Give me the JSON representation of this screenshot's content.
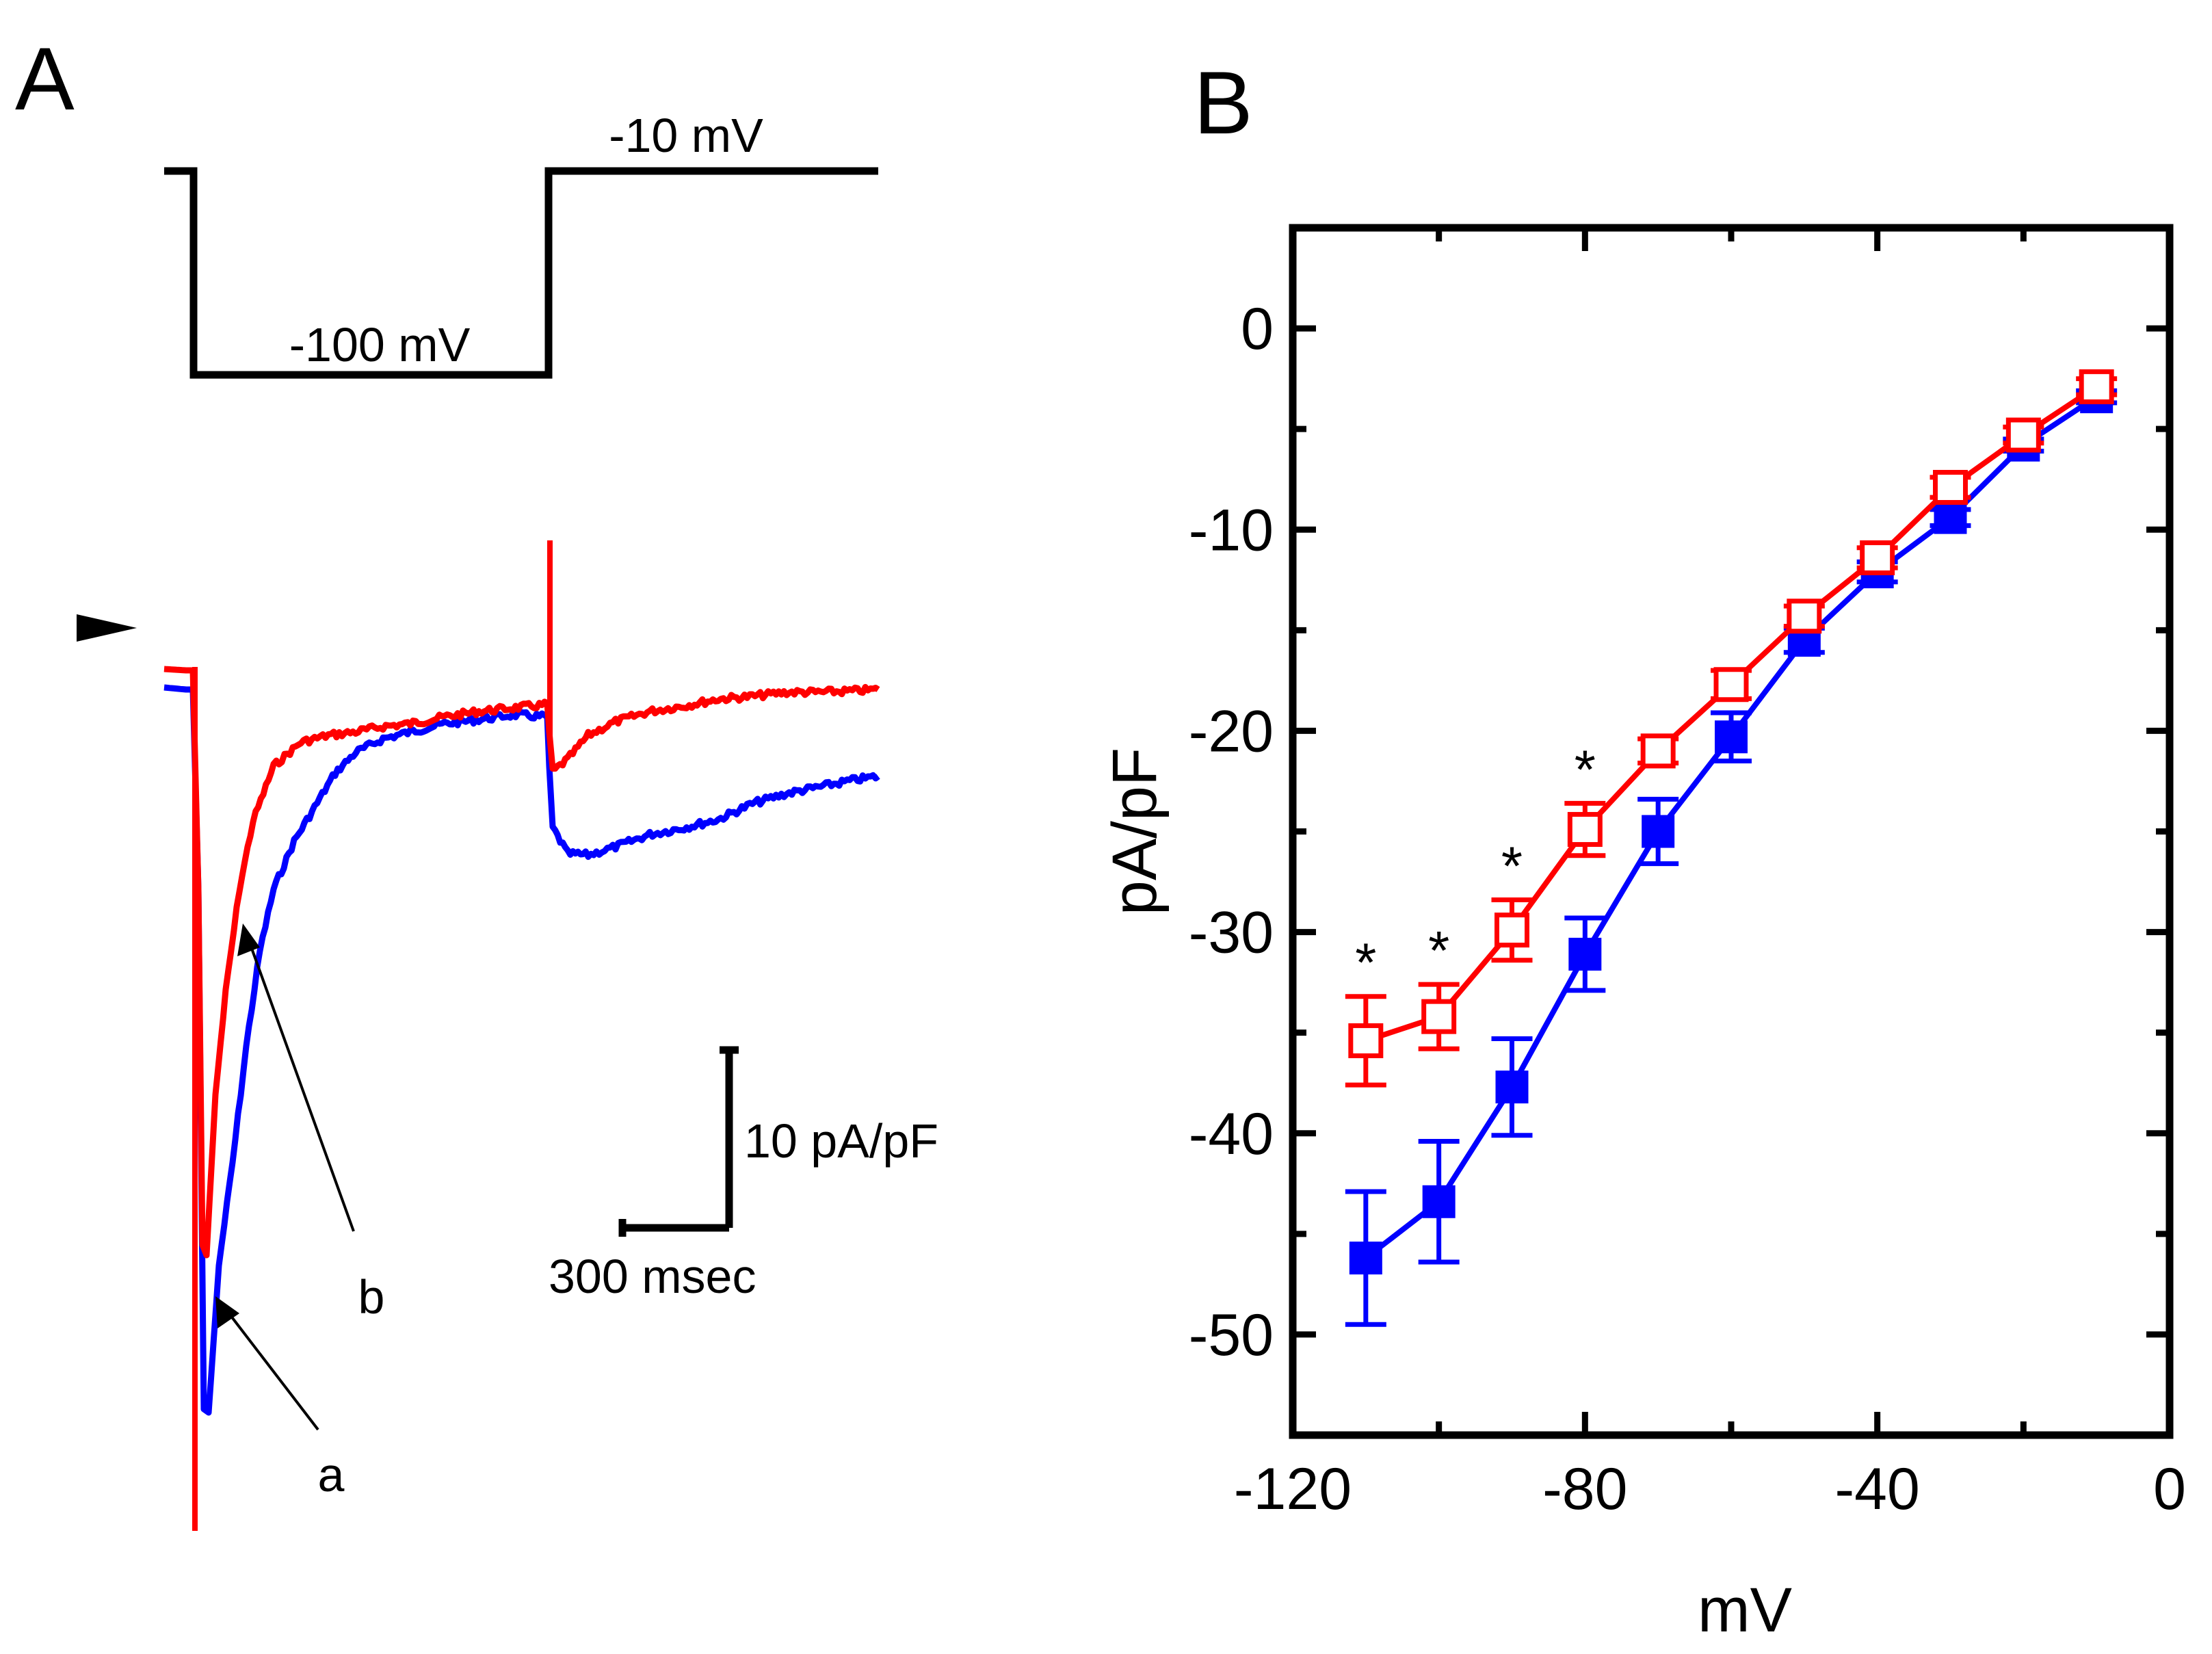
{
  "panel_a": {
    "label": "A",
    "protocol": {
      "holding_label": "-10 mV",
      "step_label": "-100 mV"
    },
    "scale_bar": {
      "vertical_label": "10 pA/pF",
      "horizontal_label": "300 msec",
      "vertical_value": 10,
      "horizontal_value": 300
    },
    "trace_labels": {
      "a": "a",
      "b": "b"
    },
    "colors": {
      "trace_a": "#0000ff",
      "trace_b": "#ff0000",
      "protocol": "#000000"
    }
  },
  "panel_b": {
    "label": "B"
  },
  "chart_data": {
    "type": "line",
    "title": "",
    "xlabel": "mV",
    "ylabel": "pA/pF",
    "xlim": [
      -120,
      0
    ],
    "ylim": [
      -55,
      5
    ],
    "x_ticks": [
      -120,
      -80,
      -40,
      0
    ],
    "x_tick_labels": [
      "-120",
      "-80",
      "-40",
      "0"
    ],
    "y_ticks": [
      0,
      -10,
      -20,
      -30,
      -40,
      -50
    ],
    "y_tick_labels": [
      "0",
      "-10",
      "-20",
      "-30",
      "-40",
      "-50"
    ],
    "x": [
      -110,
      -100,
      -90,
      -80,
      -70,
      -60,
      -50,
      -40,
      -30,
      -20,
      -10
    ],
    "series": [
      {
        "name": "a",
        "color": "#0000ff",
        "marker": "filled-square",
        "values": [
          -46.2,
          -43.4,
          -37.7,
          -31.1,
          -25.0,
          -20.3,
          -15.5,
          -12.1,
          -9.4,
          -5.8,
          -3.4
        ],
        "errors": [
          3.3,
          3.0,
          2.4,
          1.8,
          1.6,
          1.2,
          0.6,
          0.5,
          0.4,
          0.3,
          0.3
        ]
      },
      {
        "name": "b",
        "color": "#ff0000",
        "marker": "open-square",
        "values": [
          -35.4,
          -34.2,
          -29.9,
          -24.9,
          -21.0,
          -17.7,
          -14.3,
          -11.4,
          -7.9,
          -5.3,
          -2.9
        ],
        "errors": [
          2.2,
          1.6,
          1.5,
          1.3,
          0.6,
          0.7,
          0.5,
          0.5,
          0.5,
          0.4,
          0.4
        ]
      }
    ],
    "significance": {
      "symbol": "*",
      "x": [
        -110,
        -100,
        -90,
        -80
      ]
    },
    "grid": false,
    "legend": "none"
  }
}
